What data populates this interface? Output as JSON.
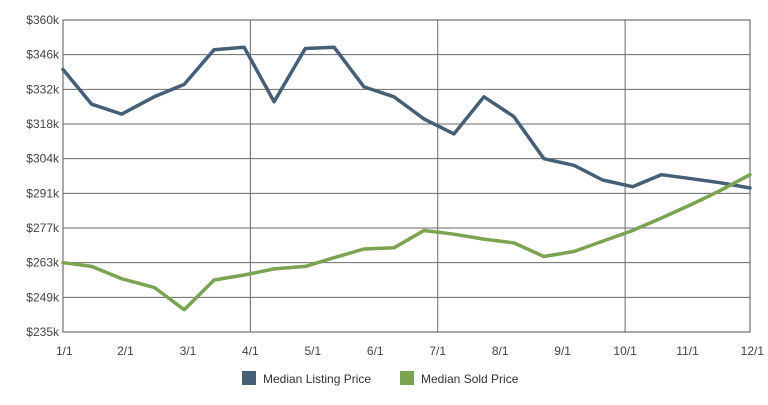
{
  "chart_data": {
    "type": "line",
    "title": "",
    "xlabel": "",
    "ylabel": "",
    "x_tick_labels": [
      "1/1",
      "2/1",
      "3/1",
      "4/1",
      "5/1",
      "6/1",
      "7/1",
      "8/1",
      "9/1",
      "10/1",
      "11/1",
      "12/1"
    ],
    "y_tick_values": [
      235,
      249,
      263,
      277,
      291,
      304,
      318,
      332,
      346,
      360
    ],
    "y_tick_labels": [
      "$235k",
      "$249k",
      "$263k",
      "$277k",
      "$291k",
      "$304k",
      "$318k",
      "$332k",
      "$346k",
      "$360k"
    ],
    "ylim": [
      235,
      360
    ],
    "xlim": [
      0,
      11
    ],
    "grid": true,
    "legend_position": "bottom-center",
    "series": [
      {
        "name": "Median Listing Price",
        "color": "#456076",
        "x": [
          0,
          0.46,
          0.94,
          1.46,
          1.94,
          2.42,
          2.9,
          3.38,
          3.88,
          4.34,
          4.82,
          5.3,
          5.78,
          6.26,
          6.74,
          7.22,
          7.7,
          8.18,
          8.64,
          9.12,
          9.58,
          10.06,
          10.52,
          11
        ],
        "values": [
          340,
          326,
          322,
          329,
          334,
          348,
          349,
          327,
          348.5,
          349,
          333,
          329,
          320,
          314,
          329,
          321,
          304,
          301.5,
          296,
          293.5,
          298,
          296.5,
          295,
          293
        ]
      },
      {
        "name": "Median Sold Price",
        "color": "#7aa352",
        "x": [
          0,
          0.46,
          0.94,
          1.46,
          1.94,
          2.42,
          2.9,
          3.38,
          3.88,
          4.34,
          4.82,
          5.3,
          5.78,
          6.26,
          6.74,
          7.22,
          7.7,
          8.18,
          9.12,
          9.58,
          10.06,
          10.52,
          11
        ],
        "values": [
          263,
          261.5,
          256.5,
          253,
          244,
          256,
          258,
          260.5,
          261.5,
          265,
          268.5,
          269,
          276,
          274.5,
          272.5,
          271,
          265.5,
          267.5,
          276,
          281,
          286.5,
          292,
          298
        ]
      }
    ]
  }
}
